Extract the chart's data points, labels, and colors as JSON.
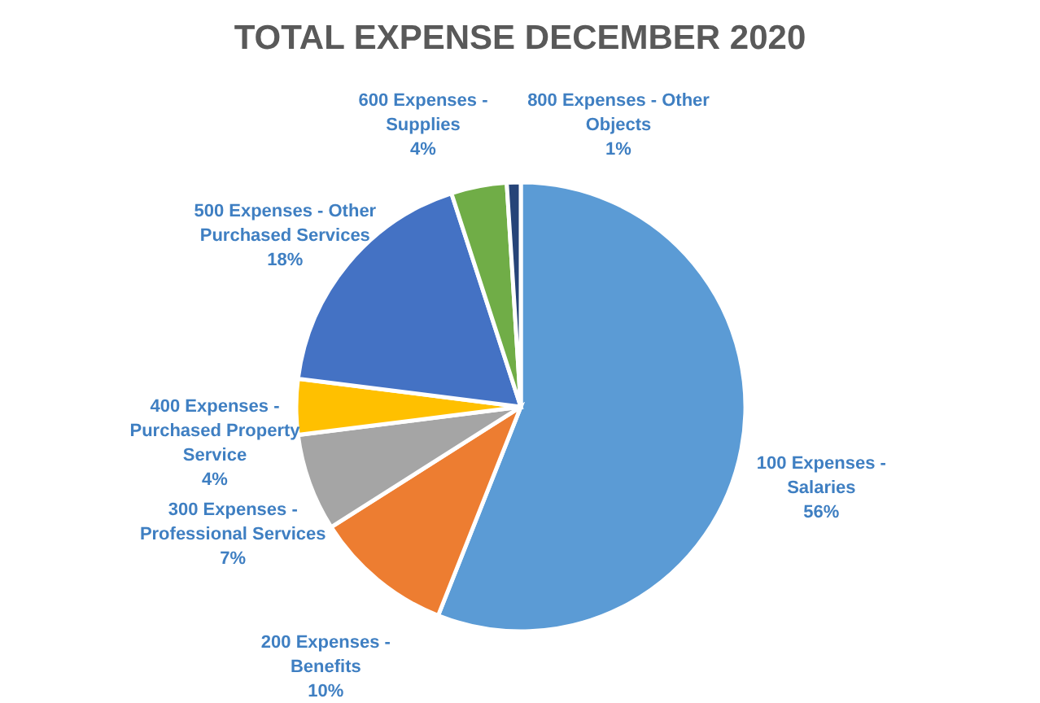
{
  "chart_data": {
    "type": "pie",
    "title": "TOTAL EXPENSE DECEMBER 2020",
    "categories": [
      "100 Expenses - Salaries",
      "200 Expenses - Benefits",
      "300 Expenses - Professional Services",
      "400 Expenses - Purchased Property Service",
      "500 Expenses - Other Purchased Services",
      "600 Expenses - Supplies",
      "800 Expenses - Other Objects"
    ],
    "values": [
      56,
      10,
      7,
      4,
      18,
      4,
      1
    ],
    "colors": [
      "#5b9bd5",
      "#ed7d31",
      "#a5a5a5",
      "#ffc000",
      "#4472c4",
      "#70ad47",
      "#264478"
    ],
    "value_labels": [
      "56%",
      "10%",
      "7%",
      "4%",
      "18%",
      "4%",
      "1%"
    ]
  }
}
